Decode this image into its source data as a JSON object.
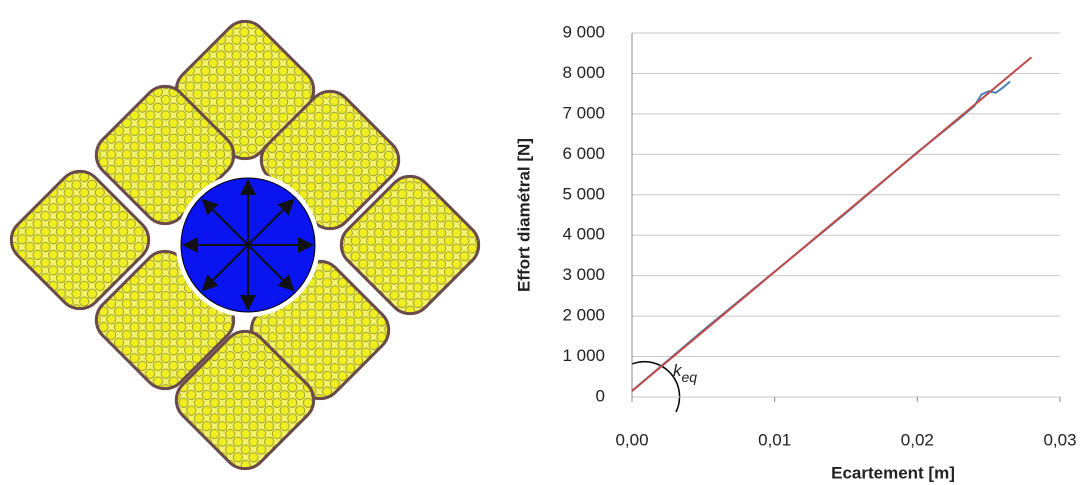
{
  "chart_data": {
    "type": "line",
    "xlabel": "Ecartement [m]",
    "ylabel": "Effort diamétral [N]",
    "annotation": {
      "base": "k",
      "sub": "eq"
    },
    "xlim": [
      0,
      0.03
    ],
    "xticks": [
      {
        "value": 0,
        "label": "0,00"
      },
      {
        "value": 0.01,
        "label": "0,01"
      },
      {
        "value": 0.02,
        "label": "0,02"
      },
      {
        "value": 0.03,
        "label": "0,03"
      }
    ],
    "ylim": [
      0,
      9000
    ],
    "yticks": [
      0,
      {
        "value": 1000,
        "label": "1 000"
      },
      {
        "value": 2000,
        "label": "2 000"
      },
      {
        "value": 3000,
        "label": "3 000"
      },
      {
        "value": 4000,
        "label": "4 000"
      },
      {
        "value": 5000,
        "label": "5 000"
      },
      {
        "value": 6000,
        "label": "6 000"
      },
      {
        "value": 7000,
        "label": "7 000"
      },
      {
        "value": 8000,
        "label": "8 000"
      },
      {
        "value": 9000,
        "label": "9 000"
      }
    ],
    "grid": true,
    "series": [
      {
        "color": "#4a7ebb",
        "x": [
          0,
          0.003,
          0.005,
          0.01,
          0.015,
          0.02,
          0.023,
          0.024,
          0.0245,
          0.025,
          0.0255,
          0.026,
          0.0265
        ],
        "values": [
          150,
          1050,
          1650,
          3100,
          4550,
          6050,
          6900,
          7200,
          7480,
          7560,
          7520,
          7650,
          7800
        ]
      },
      {
        "color": "#be4b48",
        "x": [
          0,
          0.028
        ],
        "values": [
          150,
          8400
        ]
      }
    ]
  }
}
